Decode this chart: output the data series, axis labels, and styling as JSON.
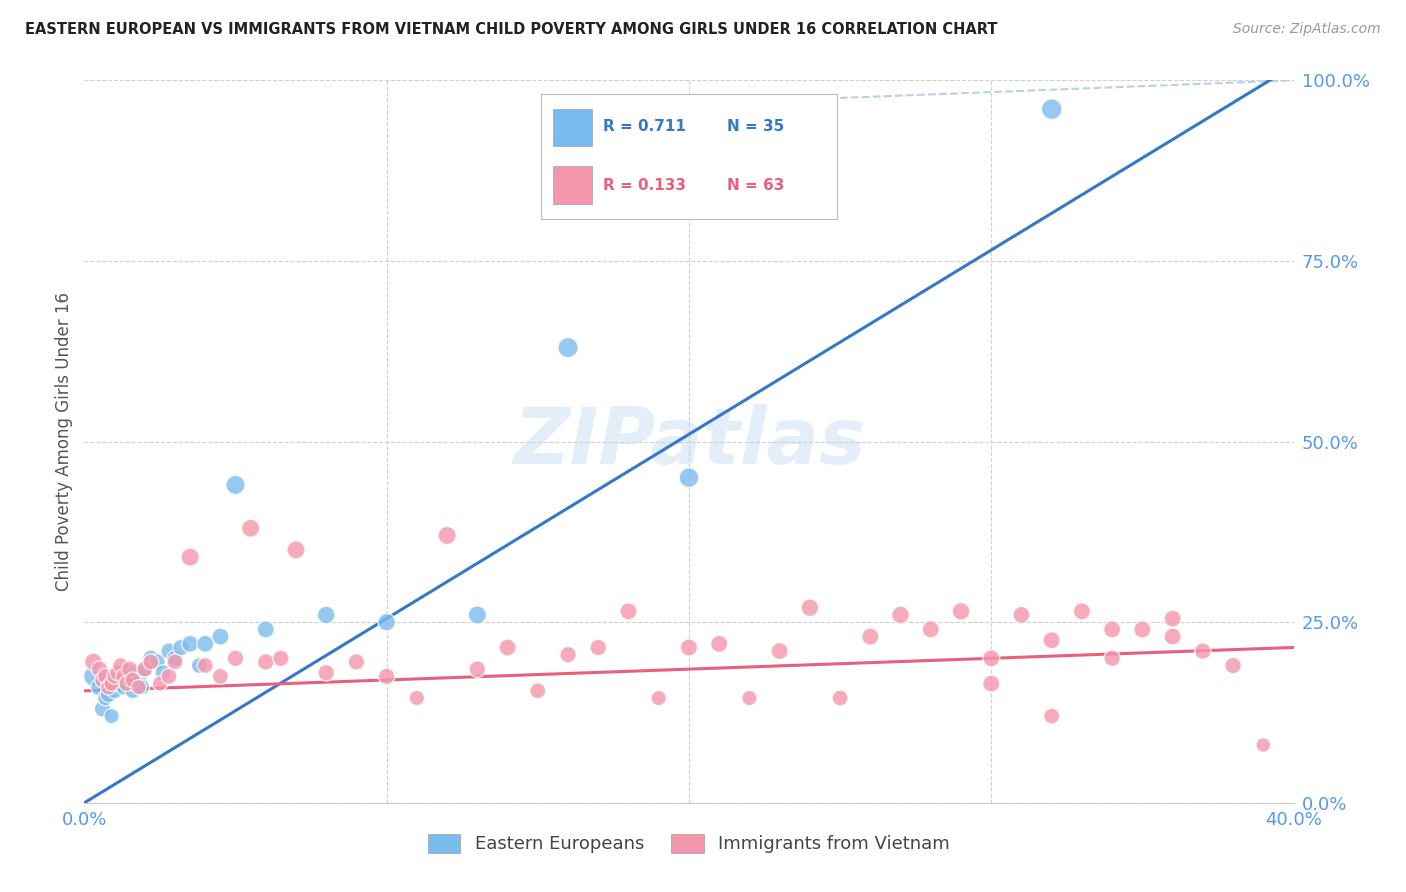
{
  "title": "EASTERN EUROPEAN VS IMMIGRANTS FROM VIETNAM CHILD POVERTY AMONG GIRLS UNDER 16 CORRELATION CHART",
  "source": "Source: ZipAtlas.com",
  "ylabel": "Child Poverty Among Girls Under 16",
  "xlim": [
    0.0,
    0.4
  ],
  "ylim": [
    0.0,
    1.0
  ],
  "yticks": [
    0.0,
    0.25,
    0.5,
    0.75,
    1.0
  ],
  "ytick_labels": [
    "0.0%",
    "25.0%",
    "50.0%",
    "75.0%",
    "100.0%"
  ],
  "xticks": [
    0.0,
    0.1,
    0.2,
    0.3,
    0.4
  ],
  "xtick_labels": [
    "0.0%",
    "",
    "",
    "",
    "40.0%"
  ],
  "blue_R": 0.711,
  "blue_N": 35,
  "pink_R": 0.133,
  "pink_N": 63,
  "blue_color": "#7bbcef",
  "pink_color": "#f496ac",
  "blue_line_color": "#3478c8",
  "pink_line_color": "#e8607a",
  "dashed_line_color": "#b8d0ea",
  "watermark": "ZIPatlas",
  "blue_scatter_x": [
    0.003,
    0.005,
    0.006,
    0.007,
    0.008,
    0.009,
    0.01,
    0.011,
    0.012,
    0.013,
    0.014,
    0.015,
    0.016,
    0.017,
    0.018,
    0.019,
    0.02,
    0.022,
    0.024,
    0.026,
    0.028,
    0.03,
    0.032,
    0.035,
    0.038,
    0.04,
    0.045,
    0.05,
    0.06,
    0.08,
    0.1,
    0.13,
    0.16,
    0.2,
    0.32
  ],
  "blue_scatter_y": [
    0.175,
    0.16,
    0.13,
    0.145,
    0.15,
    0.12,
    0.155,
    0.17,
    0.165,
    0.16,
    0.175,
    0.18,
    0.155,
    0.165,
    0.175,
    0.16,
    0.185,
    0.2,
    0.195,
    0.18,
    0.21,
    0.2,
    0.215,
    0.22,
    0.19,
    0.22,
    0.23,
    0.44,
    0.24,
    0.26,
    0.25,
    0.26,
    0.63,
    0.45,
    0.96
  ],
  "pink_scatter_x": [
    0.003,
    0.005,
    0.006,
    0.007,
    0.008,
    0.009,
    0.01,
    0.011,
    0.012,
    0.013,
    0.014,
    0.015,
    0.016,
    0.018,
    0.02,
    0.022,
    0.025,
    0.028,
    0.03,
    0.035,
    0.04,
    0.045,
    0.05,
    0.055,
    0.06,
    0.065,
    0.07,
    0.08,
    0.09,
    0.1,
    0.11,
    0.12,
    0.13,
    0.14,
    0.15,
    0.16,
    0.17,
    0.18,
    0.19,
    0.2,
    0.21,
    0.22,
    0.23,
    0.24,
    0.25,
    0.26,
    0.27,
    0.28,
    0.29,
    0.3,
    0.31,
    0.32,
    0.33,
    0.34,
    0.35,
    0.36,
    0.37,
    0.38,
    0.39,
    0.3,
    0.32,
    0.34,
    0.36
  ],
  "pink_scatter_y": [
    0.195,
    0.185,
    0.17,
    0.175,
    0.16,
    0.165,
    0.175,
    0.18,
    0.19,
    0.175,
    0.165,
    0.185,
    0.17,
    0.16,
    0.185,
    0.195,
    0.165,
    0.175,
    0.195,
    0.34,
    0.19,
    0.175,
    0.2,
    0.38,
    0.195,
    0.2,
    0.35,
    0.18,
    0.195,
    0.175,
    0.145,
    0.37,
    0.185,
    0.215,
    0.155,
    0.205,
    0.215,
    0.265,
    0.145,
    0.215,
    0.22,
    0.145,
    0.21,
    0.27,
    0.145,
    0.23,
    0.26,
    0.24,
    0.265,
    0.2,
    0.26,
    0.225,
    0.265,
    0.24,
    0.24,
    0.255,
    0.21,
    0.19,
    0.08,
    0.165,
    0.12,
    0.2,
    0.23
  ],
  "blue_scatter_sizes": [
    200,
    160,
    140,
    130,
    140,
    120,
    130,
    130,
    140,
    130,
    130,
    140,
    130,
    130,
    140,
    130,
    140,
    140,
    140,
    130,
    140,
    140,
    140,
    150,
    130,
    150,
    150,
    190,
    150,
    160,
    160,
    170,
    210,
    200,
    220
  ],
  "pink_scatter_sizes": [
    160,
    140,
    130,
    130,
    130,
    120,
    130,
    130,
    130,
    130,
    130,
    140,
    130,
    120,
    130,
    130,
    120,
    130,
    130,
    170,
    130,
    130,
    140,
    170,
    140,
    140,
    170,
    140,
    140,
    140,
    120,
    170,
    140,
    150,
    130,
    140,
    140,
    150,
    120,
    150,
    150,
    120,
    150,
    160,
    130,
    150,
    160,
    150,
    160,
    150,
    150,
    150,
    150,
    150,
    150,
    150,
    140,
    140,
    110,
    150,
    130,
    140,
    150
  ],
  "blue_line_x0": 0.0,
  "blue_line_y0": 0.0,
  "blue_line_x1": 0.4,
  "blue_line_y1": 1.02,
  "pink_line_x0": 0.0,
  "pink_line_y0": 0.155,
  "pink_line_x1": 0.4,
  "pink_line_y1": 0.215,
  "dashed_line_x0": 0.155,
  "dashed_line_y0": 0.96,
  "dashed_line_x1": 0.4,
  "dashed_line_y1": 1.0,
  "background_color": "#ffffff",
  "grid_color": "#d0d0d0",
  "axis_tick_color": "#5599ee",
  "ylabel_color": "#555555",
  "title_color": "#222222",
  "source_color": "#999999"
}
